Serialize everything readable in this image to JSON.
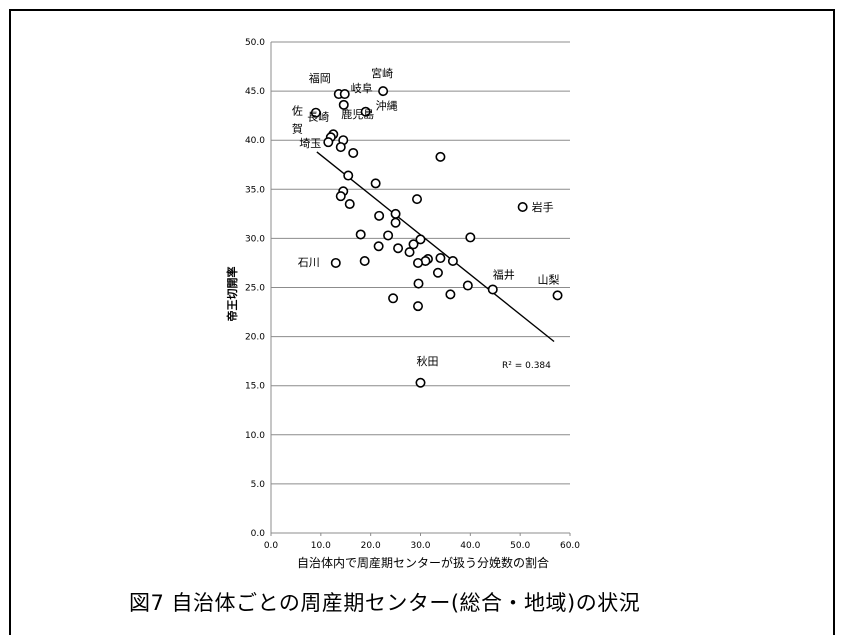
{
  "figure": {
    "caption": "図7 自治体ごとの周産期センター(総合・地域)の状況"
  },
  "chart_data": {
    "type": "scatter",
    "xlabel": "自治体内で周産期センターが扱う分娩数の割合",
    "ylabel": "帝王切開率",
    "xlim": [
      0,
      60
    ],
    "ylim": [
      0,
      50
    ],
    "x_ticks": [
      "0.0",
      "10.0",
      "20.0",
      "30.0",
      "40.0",
      "50.0",
      "60.0"
    ],
    "y_ticks": [
      "0.0",
      "5.0",
      "10.0",
      "15.0",
      "20.0",
      "25.0",
      "30.0",
      "35.0",
      "40.0",
      "45.0",
      "50.0"
    ],
    "grid": true,
    "marker_color": "#000000",
    "points": [
      {
        "x": 22.5,
        "y": 45.0,
        "label": "宮崎"
      },
      {
        "x": 13.6,
        "y": 44.7,
        "label": "福岡"
      },
      {
        "x": 14.8,
        "y": 44.7,
        "label": "岐阜"
      },
      {
        "x": 14.6,
        "y": 43.6
      },
      {
        "x": 19.0,
        "y": 42.9,
        "label": "沖縄"
      },
      {
        "x": 9.0,
        "y": 42.8,
        "label": "佐賀"
      },
      {
        "x": 12.5,
        "y": 40.6,
        "label": "長崎"
      },
      {
        "x": 12.0,
        "y": 40.3
      },
      {
        "x": 14.5,
        "y": 40.0,
        "label": "鹿児島"
      },
      {
        "x": 11.5,
        "y": 39.8,
        "label": "埼玉"
      },
      {
        "x": 14.0,
        "y": 39.3
      },
      {
        "x": 16.5,
        "y": 38.7
      },
      {
        "x": 34.0,
        "y": 38.3
      },
      {
        "x": 15.5,
        "y": 36.4
      },
      {
        "x": 21.0,
        "y": 35.6
      },
      {
        "x": 14.5,
        "y": 34.8
      },
      {
        "x": 14.0,
        "y": 34.3
      },
      {
        "x": 29.3,
        "y": 34.0
      },
      {
        "x": 15.8,
        "y": 33.5
      },
      {
        "x": 50.5,
        "y": 33.2,
        "label": "岩手"
      },
      {
        "x": 25.0,
        "y": 32.5
      },
      {
        "x": 21.7,
        "y": 32.3
      },
      {
        "x": 25.0,
        "y": 31.6
      },
      {
        "x": 18.0,
        "y": 30.4
      },
      {
        "x": 23.5,
        "y": 30.3
      },
      {
        "x": 40.0,
        "y": 30.1
      },
      {
        "x": 30.0,
        "y": 29.9
      },
      {
        "x": 21.6,
        "y": 29.2
      },
      {
        "x": 28.6,
        "y": 29.4
      },
      {
        "x": 25.5,
        "y": 29.0
      },
      {
        "x": 27.8,
        "y": 28.6
      },
      {
        "x": 34.0,
        "y": 28.0
      },
      {
        "x": 31.5,
        "y": 27.9
      },
      {
        "x": 36.5,
        "y": 27.7
      },
      {
        "x": 31.0,
        "y": 27.7
      },
      {
        "x": 18.8,
        "y": 27.7
      },
      {
        "x": 29.5,
        "y": 27.5
      },
      {
        "x": 13.0,
        "y": 27.5,
        "label": "石川"
      },
      {
        "x": 33.5,
        "y": 26.5
      },
      {
        "x": 29.6,
        "y": 25.4
      },
      {
        "x": 39.5,
        "y": 25.2
      },
      {
        "x": 44.5,
        "y": 24.8,
        "label": "福井"
      },
      {
        "x": 36.0,
        "y": 24.3
      },
      {
        "x": 57.5,
        "y": 24.2,
        "label": "山梨"
      },
      {
        "x": 24.5,
        "y": 23.9
      },
      {
        "x": 29.5,
        "y": 23.1
      },
      {
        "x": 30.0,
        "y": 15.3,
        "label": "秋田"
      }
    ],
    "trendline": {
      "x_start": 9.2,
      "y_start": 38.8,
      "x_end": 56.8,
      "y_end": 19.5
    },
    "annotation": "R² = 0.384"
  }
}
